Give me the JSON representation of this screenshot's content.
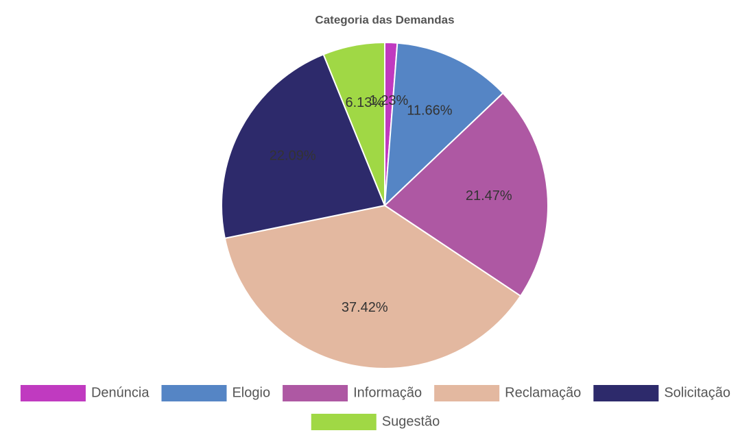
{
  "chart_data": {
    "type": "pie",
    "title": "Categoria das Demandas",
    "categories": [
      "Denúncia",
      "Elogio",
      "Informação",
      "Reclamação",
      "Solicitação",
      "Sugestão"
    ],
    "values": [
      1.23,
      11.66,
      21.47,
      37.42,
      22.09,
      6.13
    ],
    "value_labels": [
      "1.23%",
      "11.66%",
      "21.47%",
      "37.42%",
      "22.09%",
      "6.13%"
    ],
    "colors": [
      "#c03ac0",
      "#5585c5",
      "#ae58a3",
      "#e3b8a0",
      "#2d2a6b",
      "#a0d845"
    ],
    "legend": "bottom"
  }
}
